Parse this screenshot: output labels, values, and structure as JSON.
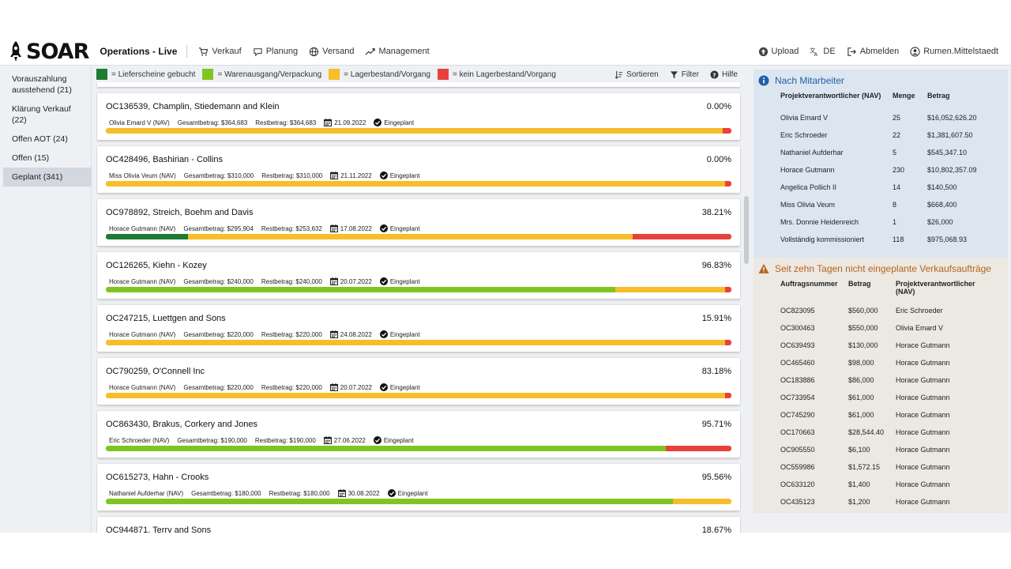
{
  "app": {
    "logo_text": "SOAR",
    "title": "Operations - Live"
  },
  "nav": {
    "items": [
      {
        "label": "Verkauf",
        "icon": "cart-icon"
      },
      {
        "label": "Planung",
        "icon": "chat-icon"
      },
      {
        "label": "Versand",
        "icon": "globe-icon"
      },
      {
        "label": "Management",
        "icon": "trend-icon"
      }
    ],
    "right": [
      {
        "label": "Upload",
        "icon": "upload-icon"
      },
      {
        "label": "DE",
        "icon": "translate-icon"
      },
      {
        "label": "Abmelden",
        "icon": "logout-icon"
      },
      {
        "label": "Rumen.Mittelstaedt",
        "icon": "user-icon"
      }
    ]
  },
  "sidebar": {
    "items": [
      {
        "label": "Vorauszahlung ausstehend (21)",
        "active": false
      },
      {
        "label": "Klärung Verkauf (22)",
        "active": false
      },
      {
        "label": "Offen AOT (24)",
        "active": false
      },
      {
        "label": "Offen (15)",
        "active": false
      },
      {
        "label": "Geplant (341)",
        "active": true
      }
    ]
  },
  "legend": {
    "items": [
      {
        "color": "#1e7b34",
        "label": "= Lieferscheine gebucht"
      },
      {
        "color": "#7ec522",
        "label": "= Warenausgang/Verpackung"
      },
      {
        "color": "#f7bd2a",
        "label": "= Lagerbestand/Vorgang"
      },
      {
        "color": "#e8413c",
        "label": "= kein Lagerbestand/Vorgang"
      }
    ],
    "tools": {
      "sort": "Sortieren",
      "filter": "Filter",
      "help": "Hilfe"
    }
  },
  "colors": {
    "dark_green": "#1e7b34",
    "green": "#7ec522",
    "yellow": "#f7bd2a",
    "red": "#e8413c"
  },
  "orders": [
    {
      "title": "OC136539, Champlin, Stiedemann and Klein",
      "pct": "0.00%",
      "owner": "Olivia Emard V (NAV)",
      "gesamt": "Gesamtbetrag: $364,683",
      "rest": "Restbetrag: $364,683",
      "date": "21.09.2022",
      "status": "Eingeplant",
      "segments": [
        0,
        0,
        0.986,
        0.014
      ]
    },
    {
      "title": "OC428496, Bashirian - Collins",
      "pct": "0.00%",
      "owner": "Miss Olivia Veum (NAV)",
      "gesamt": "Gesamtbetrag: $310,000",
      "rest": "Restbetrag: $310,000",
      "date": "21.11.2022",
      "status": "Eingeplant",
      "segments": [
        0,
        0,
        0.99,
        0.01
      ]
    },
    {
      "title": "OC978892, Streich, Boehm and Davis",
      "pct": "38.21%",
      "owner": "Horace Gutmann (NAV)",
      "gesamt": "Gesamtbetrag: $295,904",
      "rest": "Restbetrag: $253,632",
      "date": "17.08.2022",
      "status": "Eingeplant",
      "segments": [
        0.131,
        0,
        0.711,
        0.158
      ]
    },
    {
      "title": "OC126265, Kiehn - Kozey",
      "pct": "96.83%",
      "owner": "Horace Gutmann (NAV)",
      "gesamt": "Gesamtbetrag: $240,000",
      "rest": "Restbetrag: $240,000",
      "date": "20.07.2022",
      "status": "Eingeplant",
      "segments": [
        0,
        0.814,
        0.176,
        0.01
      ]
    },
    {
      "title": "OC247215, Luettgen and Sons",
      "pct": "15.91%",
      "owner": "Horace Gutmann (NAV)",
      "gesamt": "Gesamtbetrag: $220,000",
      "rest": "Restbetrag: $220,000",
      "date": "24.08.2022",
      "status": "Eingeplant",
      "segments": [
        0,
        0,
        0.99,
        0.01
      ]
    },
    {
      "title": "OC790259, O'Connell Inc",
      "pct": "83.18%",
      "owner": "Horace Gutmann (NAV)",
      "gesamt": "Gesamtbetrag: $220,000",
      "rest": "Restbetrag: $220,000",
      "date": "20.07.2022",
      "status": "Eingeplant",
      "segments": [
        0,
        0,
        0.99,
        0.01
      ]
    },
    {
      "title": "OC863430, Brakus, Corkery and Jones",
      "pct": "95.71%",
      "owner": "Eric Schroeder (NAV)",
      "gesamt": "Gesamtbetrag: $190,000",
      "rest": "Restbetrag: $190,000",
      "date": "27.06.2022",
      "status": "Eingeplant",
      "segments": [
        0,
        0.895,
        0,
        0.105
      ]
    },
    {
      "title": "OC615273, Hahn - Crooks",
      "pct": "95.56%",
      "owner": "Nathaniel Aufderhar (NAV)",
      "gesamt": "Gesamtbetrag: $180,000",
      "rest": "Restbetrag: $180,000",
      "date": "30.08.2022",
      "status": "Eingeplant",
      "segments": [
        0,
        0.906,
        0.094,
        0
      ]
    },
    {
      "title": "OC944871, Terry and Sons",
      "pct": "18.67%",
      "owner": "",
      "gesamt": "",
      "rest": "",
      "date": "",
      "status": "",
      "segments": [
        0,
        0,
        0,
        0
      ]
    }
  ],
  "panel_employees": {
    "title": "Nach Mitarbeiter",
    "headers": [
      "Projektverantwortlicher (NAV)",
      "Menge",
      "Betrag"
    ],
    "rows": [
      [
        "Olivia Emard V",
        "25",
        "$16,052,626.20"
      ],
      [
        "Eric Schroeder",
        "22",
        "$1,381,607.50"
      ],
      [
        "Nathaniel Aufderhar",
        "5",
        "$545,347.10"
      ],
      [
        "Horace Gutmann",
        "230",
        "$10,802,357.09"
      ],
      [
        "Angelica Pollich II",
        "14",
        "$140,500"
      ],
      [
        "Miss Olivia Veum",
        "8",
        "$668,400"
      ],
      [
        "Mrs. Donnie Heidenreich",
        "1",
        "$26,000"
      ],
      [
        "Vollständig kommissioniert",
        "118",
        "$975,068.93"
      ]
    ]
  },
  "panel_unplanned": {
    "title": "Seit zehn Tagen nicht eingeplante Verkaufsaufträge",
    "headers": [
      "Auftragsnummer",
      "Betrag",
      "Projektverantwortlicher (NAV)"
    ],
    "rows": [
      [
        "OC823095",
        "$560,000",
        "Eric Schroeder"
      ],
      [
        "OC300463",
        "$550,000",
        "Olivia Emard V"
      ],
      [
        "OC639493",
        "$130,000",
        "Horace Gutmann"
      ],
      [
        "OC465460",
        "$98,000",
        "Horace Gutmann"
      ],
      [
        "OC183886",
        "$86,000",
        "Horace Gutmann"
      ],
      [
        "OC733954",
        "$61,000",
        "Horace Gutmann"
      ],
      [
        "OC745290",
        "$61,000",
        "Horace Gutmann"
      ],
      [
        "OC170663",
        "$28,544.40",
        "Horace Gutmann"
      ],
      [
        "OC905550",
        "$6,100",
        "Horace Gutmann"
      ],
      [
        "OC559986",
        "$1,572.15",
        "Horace Gutmann"
      ],
      [
        "OC633120",
        "$1,400",
        "Horace Gutmann"
      ],
      [
        "OC435123",
        "$1,200",
        "Horace Gutmann"
      ]
    ]
  }
}
